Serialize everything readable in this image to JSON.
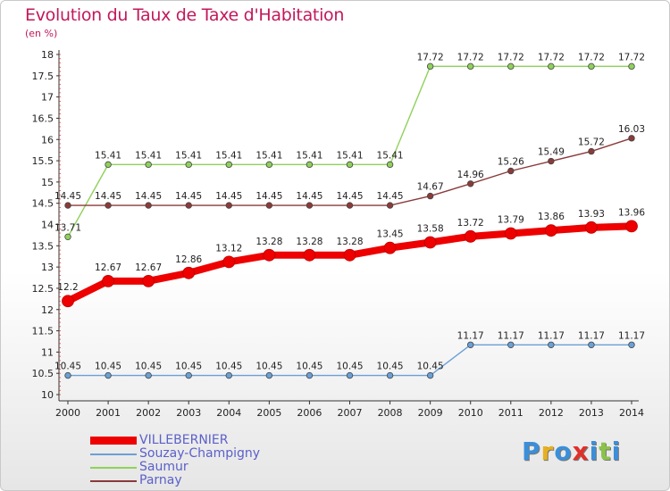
{
  "title": "Evolution du Taux de Taxe d'Habitation",
  "unit": "(en %)",
  "logo": {
    "text": "Proxiti",
    "colors": [
      "#3b8fd9",
      "#e8b020",
      "#3b8fd9",
      "#e0302a",
      "#3b8fd9",
      "#8bc34a",
      "#3b8fd9"
    ]
  },
  "chart_data": {
    "type": "line",
    "title": "Evolution du Taux de Taxe d'Habitation",
    "ylabel": "(en %)",
    "xlabel": "",
    "x": [
      "2000",
      "2001",
      "2002",
      "2003",
      "2004",
      "2005",
      "2006",
      "2007",
      "2008",
      "2009",
      "2010",
      "2011",
      "2012",
      "2013",
      "2014"
    ],
    "ylim": [
      10,
      18
    ],
    "yticks": [
      "10",
      "10.5",
      "11",
      "11.5",
      "12",
      "12.5",
      "13",
      "13.5",
      "14",
      "14.5",
      "15",
      "15.5",
      "16",
      "16.5",
      "17",
      "17.5",
      "18"
    ],
    "grid": false,
    "legend": "bottom-left",
    "series": [
      {
        "name": "VILLEBERNIER",
        "color": "#ee0000",
        "bold": true,
        "values": [
          12.2,
          12.67,
          12.67,
          12.86,
          13.12,
          13.28,
          13.28,
          13.28,
          13.45,
          13.58,
          13.72,
          13.79,
          13.86,
          13.93,
          13.96
        ],
        "labels": [
          "12.2",
          "12.67",
          "12.67",
          "12.86",
          "13.12",
          "13.28",
          "13.28",
          "13.28",
          "13.45",
          "13.58",
          "13.72",
          "13.79",
          "13.86",
          "13.93",
          "13.96"
        ]
      },
      {
        "name": "Souzay-Champigny",
        "color": "#6aa0d6",
        "values": [
          10.45,
          10.45,
          10.45,
          10.45,
          10.45,
          10.45,
          10.45,
          10.45,
          10.45,
          10.45,
          11.17,
          11.17,
          11.17,
          11.17,
          11.17
        ],
        "labels": [
          "10.45",
          "10.45",
          "10.45",
          "10.45",
          "10.45",
          "10.45",
          "10.45",
          "10.45",
          "10.45",
          "10.45",
          "11.17",
          "11.17",
          "11.17",
          "11.17",
          "11.17"
        ]
      },
      {
        "name": "Saumur",
        "color": "#8fd15a",
        "values": [
          13.71,
          15.41,
          15.41,
          15.41,
          15.41,
          15.41,
          15.41,
          15.41,
          15.41,
          17.72,
          17.72,
          17.72,
          17.72,
          17.72,
          17.72
        ],
        "labels": [
          "13.71",
          "15.41",
          "15.41",
          "15.41",
          "15.41",
          "15.41",
          "15.41",
          "15.41",
          "15.41",
          "17.72",
          "17.72",
          "17.72",
          "17.72",
          "17.72",
          "17.72"
        ]
      },
      {
        "name": "Parnay",
        "color": "#8b3a3a",
        "values": [
          14.45,
          14.45,
          14.45,
          14.45,
          14.45,
          14.45,
          14.45,
          14.45,
          14.45,
          14.67,
          14.96,
          15.26,
          15.49,
          15.72,
          16.03
        ],
        "labels": [
          "14.45",
          "14.45",
          "14.45",
          "14.45",
          "14.45",
          "14.45",
          "14.45",
          "14.45",
          "14.45",
          "14.67",
          "14.96",
          "15.26",
          "15.49",
          "15.72",
          "16.03"
        ]
      }
    ]
  }
}
